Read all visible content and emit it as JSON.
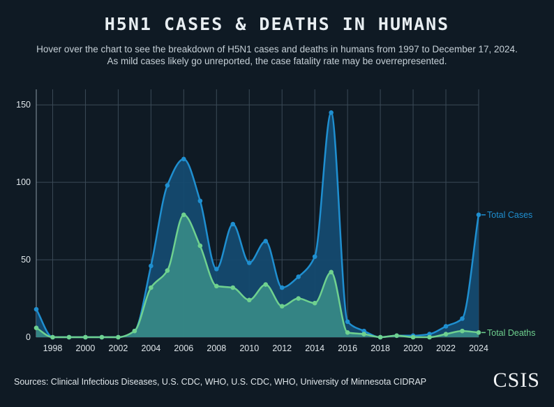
{
  "header": {
    "title": "H5N1 CASES & DEATHS IN HUMANS",
    "subtitle_line1": "Hover over the chart to see the breakdown of H5N1 cases and deaths in humans from 1997 to December 17, 2024.",
    "subtitle_line2": "As mild cases likely go unreported, the case fatality rate may be overrepresented."
  },
  "footer": {
    "sources": "Sources: Clinical Infectious Diseases, U.S. CDC, WHO, U.S. CDC, WHO, University of Minnesota CIDRAP",
    "logo": "CSIS"
  },
  "colors": {
    "background": "#0f1a24",
    "cases": "#1f8fd0",
    "deaths": "#6fd18f",
    "grid": "#3b4a57"
  },
  "chart_data": {
    "type": "area",
    "title": "H5N1 CASES & DEATHS IN HUMANS",
    "xlabel": "",
    "ylabel": "",
    "x": [
      1997,
      1998,
      1999,
      2000,
      2001,
      2002,
      2003,
      2004,
      2005,
      2006,
      2007,
      2008,
      2009,
      2010,
      2011,
      2012,
      2013,
      2014,
      2015,
      2016,
      2017,
      2018,
      2019,
      2020,
      2021,
      2022,
      2023,
      2024
    ],
    "xticks": [
      "1998",
      "2000",
      "2002",
      "2004",
      "2006",
      "2008",
      "2010",
      "2012",
      "2014",
      "2016",
      "2018",
      "2020",
      "2022",
      "2024"
    ],
    "xlim": [
      1997,
      2024
    ],
    "ylim": [
      0,
      160
    ],
    "yticks": [
      "0",
      "50",
      "100",
      "150"
    ],
    "series": [
      {
        "name": "Total Cases",
        "values": [
          18,
          0,
          0,
          0,
          0,
          0,
          4,
          46,
          98,
          115,
          88,
          44,
          73,
          48,
          62,
          32,
          39,
          52,
          145,
          10,
          4,
          0,
          1,
          1,
          2,
          7,
          12,
          79
        ]
      },
      {
        "name": "Total Deaths",
        "values": [
          6,
          0,
          0,
          0,
          0,
          0,
          4,
          32,
          43,
          79,
          59,
          33,
          32,
          24,
          34,
          20,
          25,
          22,
          42,
          3,
          2,
          0,
          1,
          0,
          0,
          2,
          4,
          3
        ]
      }
    ],
    "grid": true
  }
}
